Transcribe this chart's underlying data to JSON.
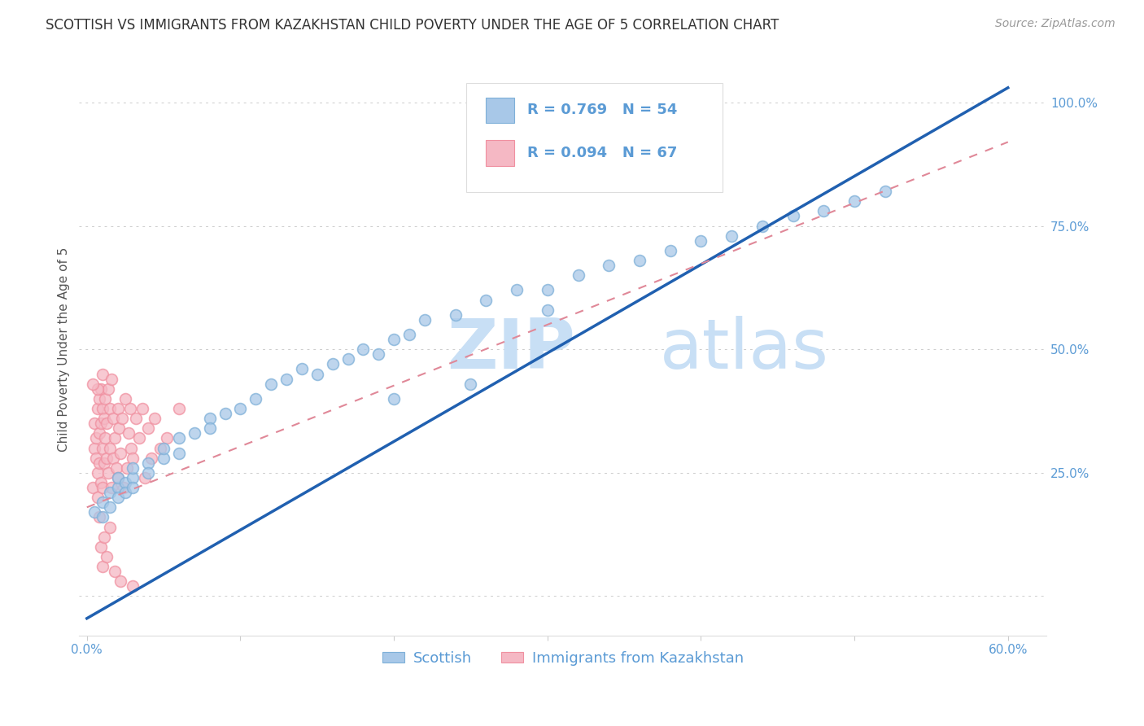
{
  "title": "SCOTTISH VS IMMIGRANTS FROM KAZAKHSTAN CHILD POVERTY UNDER THE AGE OF 5 CORRELATION CHART",
  "source": "Source: ZipAtlas.com",
  "ylabel": "Child Poverty Under the Age of 5",
  "watermark": "ZIPatlas",
  "background_color": "#ffffff",
  "title_color": "#333333",
  "source_color": "#999999",
  "watermark_color_zip": "#c8dff5",
  "watermark_color_atlas": "#c8dff5",
  "xlim_min": -0.005,
  "xlim_max": 0.625,
  "ylim_min": -0.08,
  "ylim_max": 1.08,
  "x_ticks": [
    0.0,
    0.1,
    0.2,
    0.3,
    0.4,
    0.5,
    0.6
  ],
  "x_tick_labels": [
    "0.0%",
    "",
    "",
    "",
    "",
    "",
    "60.0%"
  ],
  "y_ticks_right": [
    0.25,
    0.5,
    0.75,
    1.0
  ],
  "y_tick_labels_right": [
    "25.0%",
    "50.0%",
    "75.0%",
    "100.0%"
  ],
  "legend_label_blue": "Scottish",
  "legend_label_pink": "Immigrants from Kazakhstan",
  "r_blue": "0.769",
  "n_blue": "54",
  "r_pink": "0.094",
  "n_pink": "67",
  "blue_color": "#a8c8e8",
  "pink_color": "#f5b8c4",
  "blue_edge_color": "#7eb0d8",
  "pink_edge_color": "#f090a0",
  "blue_line_color": "#2060b0",
  "pink_line_color": "#e08898",
  "grid_color": "#cccccc",
  "ylabel_color": "#555555",
  "axis_label_color": "#5b9bd5",
  "title_fontsize": 12,
  "source_fontsize": 10,
  "axis_fontsize": 11,
  "legend_fontsize": 13,
  "marker_size": 100,
  "blue_line_x0": 0.0,
  "blue_line_y0": -0.045,
  "blue_line_x1": 0.6,
  "blue_line_y1": 1.03,
  "pink_line_x0": 0.0,
  "pink_line_y0": 0.18,
  "pink_line_x1": 0.6,
  "pink_line_y1": 0.92,
  "scottish_x": [
    0.005,
    0.01,
    0.01,
    0.015,
    0.015,
    0.02,
    0.02,
    0.02,
    0.025,
    0.025,
    0.03,
    0.03,
    0.03,
    0.04,
    0.04,
    0.05,
    0.05,
    0.06,
    0.06,
    0.07,
    0.08,
    0.08,
    0.09,
    0.1,
    0.11,
    0.12,
    0.13,
    0.14,
    0.15,
    0.16,
    0.17,
    0.18,
    0.19,
    0.2,
    0.21,
    0.22,
    0.24,
    0.26,
    0.28,
    0.3,
    0.32,
    0.34,
    0.36,
    0.38,
    0.4,
    0.42,
    0.44,
    0.46,
    0.48,
    0.5,
    0.52,
    0.3,
    0.2,
    0.25
  ],
  "scottish_y": [
    0.17,
    0.16,
    0.19,
    0.21,
    0.18,
    0.22,
    0.2,
    0.24,
    0.23,
    0.21,
    0.24,
    0.22,
    0.26,
    0.27,
    0.25,
    0.28,
    0.3,
    0.32,
    0.29,
    0.33,
    0.36,
    0.34,
    0.37,
    0.38,
    0.4,
    0.43,
    0.44,
    0.46,
    0.45,
    0.47,
    0.48,
    0.5,
    0.49,
    0.52,
    0.53,
    0.56,
    0.57,
    0.6,
    0.62,
    0.62,
    0.65,
    0.67,
    0.68,
    0.7,
    0.72,
    0.73,
    0.75,
    0.77,
    0.78,
    0.8,
    0.82,
    0.58,
    0.4,
    0.43
  ],
  "kaz_x": [
    0.004,
    0.005,
    0.005,
    0.006,
    0.006,
    0.007,
    0.007,
    0.007,
    0.008,
    0.008,
    0.008,
    0.009,
    0.009,
    0.009,
    0.01,
    0.01,
    0.01,
    0.01,
    0.011,
    0.011,
    0.012,
    0.012,
    0.013,
    0.013,
    0.014,
    0.014,
    0.015,
    0.015,
    0.016,
    0.016,
    0.017,
    0.017,
    0.018,
    0.019,
    0.02,
    0.02,
    0.021,
    0.022,
    0.023,
    0.024,
    0.025,
    0.026,
    0.027,
    0.028,
    0.029,
    0.03,
    0.032,
    0.034,
    0.036,
    0.038,
    0.04,
    0.042,
    0.044,
    0.048,
    0.052,
    0.06,
    0.007,
    0.008,
    0.009,
    0.01,
    0.011,
    0.013,
    0.015,
    0.018,
    0.022,
    0.03,
    0.004
  ],
  "kaz_y": [
    0.22,
    0.3,
    0.35,
    0.28,
    0.32,
    0.25,
    0.38,
    0.2,
    0.33,
    0.27,
    0.4,
    0.35,
    0.23,
    0.42,
    0.3,
    0.38,
    0.22,
    0.45,
    0.27,
    0.36,
    0.32,
    0.4,
    0.28,
    0.35,
    0.25,
    0.42,
    0.3,
    0.38,
    0.22,
    0.44,
    0.28,
    0.36,
    0.32,
    0.26,
    0.38,
    0.24,
    0.34,
    0.29,
    0.36,
    0.22,
    0.4,
    0.26,
    0.33,
    0.38,
    0.3,
    0.28,
    0.36,
    0.32,
    0.38,
    0.24,
    0.34,
    0.28,
    0.36,
    0.3,
    0.32,
    0.38,
    0.42,
    0.16,
    0.1,
    0.06,
    0.12,
    0.08,
    0.14,
    0.05,
    0.03,
    0.02,
    0.43
  ]
}
